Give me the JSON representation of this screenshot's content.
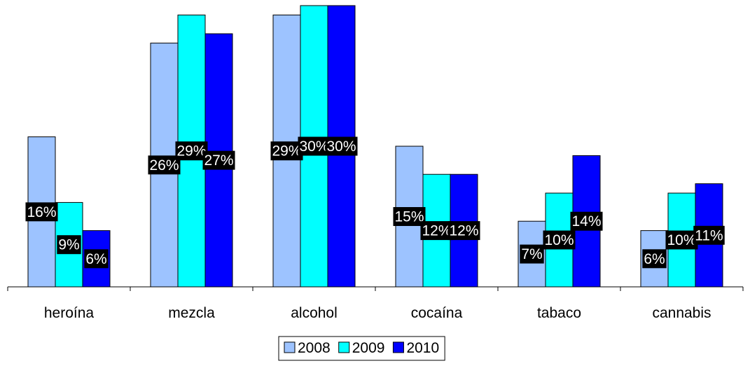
{
  "chart_data": {
    "type": "bar",
    "categories": [
      "heroína",
      "mezcla",
      "alcohol",
      "cocaína",
      "tabaco",
      "cannabis"
    ],
    "series": [
      {
        "name": "2008",
        "values": [
          16,
          26,
          29,
          15,
          7,
          6
        ],
        "labels": [
          "16%",
          "26%",
          "29%",
          "15%",
          "7%",
          "6%"
        ],
        "color": "#9DC3FF"
      },
      {
        "name": "2009",
        "values": [
          9,
          29,
          30,
          12,
          10,
          10
        ],
        "labels": [
          "9%",
          "29%",
          "30%",
          "12%",
          "10%",
          "10%"
        ],
        "color": "#00FFFF"
      },
      {
        "name": "2010",
        "values": [
          6,
          27,
          30,
          12,
          14,
          11
        ],
        "labels": [
          "6%",
          "27%",
          "30%",
          "12%",
          "14%",
          "11%"
        ],
        "color": "#0000FF"
      }
    ],
    "title": "",
    "xlabel": "",
    "ylabel": "",
    "ylim": [
      0,
      30
    ],
    "grid": false,
    "legend": "bottom"
  }
}
